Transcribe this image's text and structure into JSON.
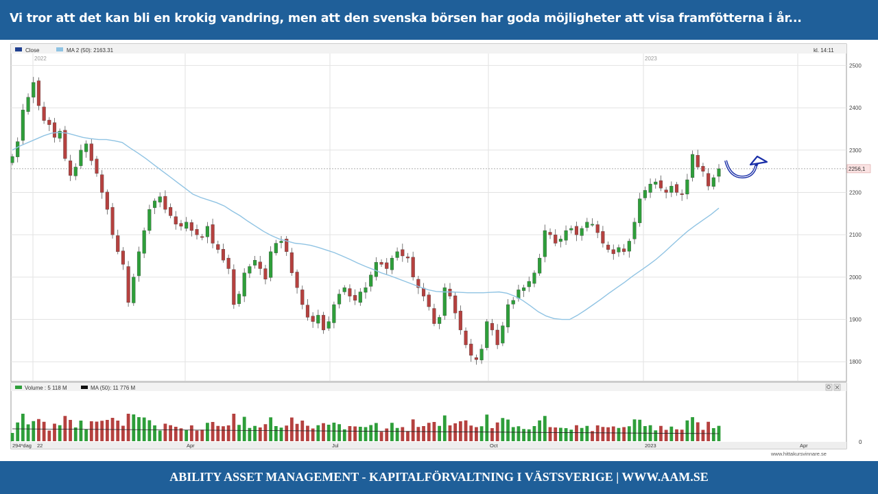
{
  "headline": "Vi tror att det kan bli en krokig vandring, men att den svenska börsen har goda möjligheter att visa framfötterna i år...",
  "footer": "ABILITY ASSET MANAGEMENT -  KAPITALFÖRVALTNING I VÄSTSVERIGE   |   WWW.AAM.SE",
  "chart_legend": {
    "close_label": "Close",
    "ma_label": "MA 2 (50): 2163.31",
    "time_label": "kl. 14:11",
    "year_2022": "2022",
    "year_2023": "2023",
    "volume_label": "Volume : 5 118 M",
    "volume_ma_label": "MA (50): 11 776 M",
    "x_prefix": "294*dag",
    "watermark": "www.hittakursvinnare.se",
    "current_price": "2256,1"
  },
  "colors": {
    "brand": "#1f5f99",
    "up": "#2e9e3a",
    "down": "#b5413f",
    "ma": "#8fc3e3",
    "arrow": "#1a2fa8"
  },
  "chart_data": {
    "type": "candlestick",
    "y_ticks": [
      1800,
      1900,
      2000,
      2100,
      2200,
      2300,
      2400,
      2500
    ],
    "ylim": [
      1755,
      2525
    ],
    "x_labels": [
      "22",
      "Apr",
      "Jul",
      "Oct",
      "2023",
      "Apr"
    ],
    "current_price": 2256.1,
    "close": [
      2285,
      2320,
      2395,
      2425,
      2460,
      2405,
      2370,
      2360,
      2330,
      2345,
      2280,
      2240,
      2260,
      2300,
      2315,
      2275,
      2245,
      2200,
      2160,
      2100,
      2060,
      2030,
      1940,
      2000,
      2060,
      2110,
      2160,
      2180,
      2190,
      2160,
      2145,
      2125,
      2120,
      2130,
      2110,
      2100,
      2095,
      2120,
      2080,
      2065,
      2040,
      2020,
      1935,
      1960,
      2010,
      2025,
      2040,
      2020,
      1995,
      2060,
      2080,
      2085,
      2060,
      2010,
      1975,
      1935,
      1905,
      1895,
      1910,
      1875,
      1895,
      1935,
      1960,
      1975,
      1955,
      1945,
      1965,
      1975,
      2005,
      2035,
      2030,
      2020,
      2045,
      2060,
      2050,
      2045,
      2000,
      1975,
      1955,
      1930,
      1890,
      1905,
      1975,
      1955,
      1915,
      1875,
      1840,
      1815,
      1805,
      1830,
      1895,
      1875,
      1840,
      1885,
      1935,
      1945,
      1970,
      1975,
      1990,
      2010,
      2045,
      2110,
      2100,
      2080,
      2090,
      2110,
      2115,
      2100,
      2115,
      2130,
      2125,
      2105,
      2080,
      2065,
      2055,
      2070,
      2060,
      2085,
      2130,
      2185,
      2205,
      2220,
      2225,
      2210,
      2200,
      2215,
      2200,
      2195,
      2230,
      2290,
      2260,
      2250,
      2215,
      2235,
      2256
    ],
    "ma50": [
      2300,
      2310,
      2318,
      2326,
      2334,
      2340,
      2342,
      2340,
      2335,
      2330,
      2327,
      2325,
      2325,
      2322,
      2318,
      2305,
      2293,
      2280,
      2266,
      2252,
      2238,
      2224,
      2210,
      2196,
      2188,
      2182,
      2176,
      2168,
      2156,
      2145,
      2132,
      2120,
      2108,
      2098,
      2090,
      2085,
      2080,
      2078,
      2075,
      2070,
      2064,
      2058,
      2050,
      2042,
      2033,
      2025,
      2018,
      2010,
      2004,
      1997,
      1990,
      1983,
      1976,
      1970,
      1966,
      1965,
      1965,
      1964,
      1963,
      1963,
      1963,
      1964,
      1965,
      1962,
      1955,
      1945,
      1932,
      1918,
      1908,
      1902,
      1900,
      1900,
      1910,
      1922,
      1935,
      1948,
      1962,
      1975,
      1988,
      2002,
      2015,
      2028,
      2042,
      2058,
      2075,
      2092,
      2108,
      2122,
      2135,
      2148,
      2163
    ]
  }
}
